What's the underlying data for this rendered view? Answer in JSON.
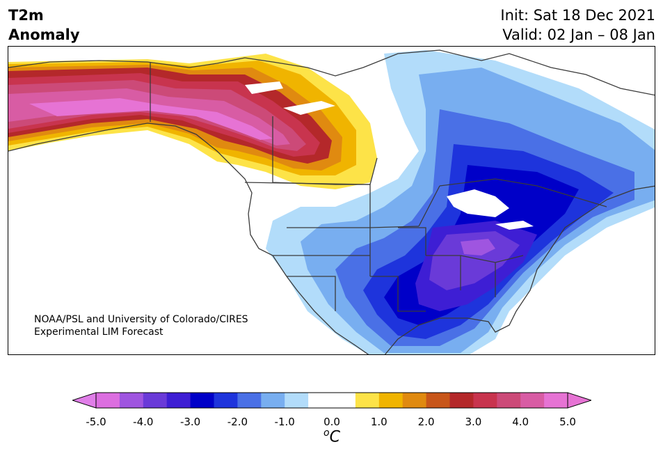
{
  "title": {
    "line1": "T2m",
    "line2": "Anomaly",
    "init": "Init: Sat 18 Dec 2021",
    "valid": "Valid: 02 Jan – 08 Jan"
  },
  "credit": {
    "line1": "NOAA/PSL and University of Colorado/CIRES",
    "line2": "Experimental LIM Forecast"
  },
  "colorbar": {
    "ticks": [
      "-5.0",
      "-4.0",
      "-3.0",
      "-2.0",
      "-1.0",
      "0.0",
      "1.0",
      "2.0",
      "3.0",
      "4.0",
      "5.0"
    ],
    "unit_super": "o",
    "unit": "C",
    "colors": [
      "#dc6ee0",
      "#9f55e0",
      "#6a3ad8",
      "#3e1ed4",
      "#0000c8",
      "#1e34dc",
      "#4a70e6",
      "#78aef0",
      "#b2dcfa",
      "#ffffff",
      "#ffffff",
      "#fde348",
      "#f0b400",
      "#e08a10",
      "#c8561a",
      "#b4282a",
      "#c8344e",
      "#cc4a78",
      "#d85ca4",
      "#e673d4"
    ],
    "under_color": "#e07ee8",
    "over_color": "#e673d4"
  },
  "map_regions": {
    "warm_alaska_canada": "positive anomaly up to above 5.0",
    "cold_eastern_us": "negative anomaly down to -4.0"
  }
}
